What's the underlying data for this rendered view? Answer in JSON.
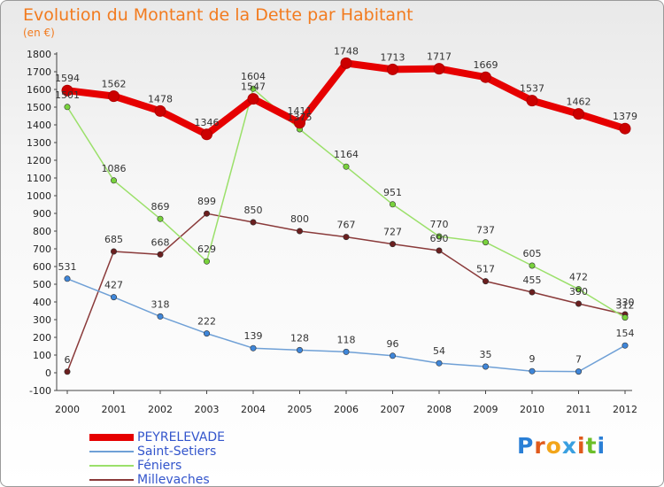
{
  "title": "Evolution du Montant de la Dette par Habitant",
  "subtitle": "(en €)",
  "logo": {
    "text": "Proxiti",
    "letters": [
      "P",
      "r",
      "o",
      "x",
      "i",
      "t",
      "i"
    ],
    "colors": [
      "#2a7fd6",
      "#e05a1c",
      "#f2a51a",
      "#3aa0e0",
      "#e05a1c",
      "#6cbf2a",
      "#2a7fd6"
    ]
  },
  "chart_data": {
    "type": "line",
    "x": [
      "2000",
      "2001",
      "2002",
      "2003",
      "2004",
      "2005",
      "2006",
      "2007",
      "2008",
      "2009",
      "2010",
      "2011",
      "2012"
    ],
    "ylim": [
      -100,
      1800
    ],
    "yticks": [
      -100,
      0,
      100,
      200,
      300,
      400,
      500,
      600,
      700,
      800,
      900,
      1000,
      1100,
      1200,
      1300,
      1400,
      1500,
      1600,
      1700,
      1800
    ],
    "grid": false,
    "legend_position": "bottom-left",
    "series": [
      {
        "name": "PEYRELEVADE",
        "color": "#e60000",
        "width": 8,
        "marker_color": "#cc0000",
        "values": [
          1594,
          1562,
          1478,
          1346,
          1547,
          1411,
          1748,
          1713,
          1717,
          1669,
          1537,
          1462,
          1379
        ],
        "labels": [
          "1594",
          "1562",
          "1478",
          "1346",
          "1547",
          "1411",
          "1748",
          "1713",
          "1717",
          "1669",
          "1537",
          "1462",
          "1379"
        ]
      },
      {
        "name": "Saint-Setiers",
        "color": "#6fa0d6",
        "width": 1.5,
        "marker_color": "#3f86d9",
        "values": [
          531,
          427,
          318,
          222,
          139,
          128,
          118,
          96,
          54,
          35,
          9,
          7,
          154
        ],
        "labels": [
          "531",
          "427",
          "318",
          "222",
          "139",
          "128",
          "118",
          "96",
          "54",
          "35",
          "9",
          "7",
          "154"
        ]
      },
      {
        "name": "Féniers",
        "color": "#9be06a",
        "width": 1.5,
        "marker_color": "#78d23c",
        "values": [
          1501,
          1086,
          869,
          629,
          1604,
          1375,
          1164,
          951,
          770,
          737,
          605,
          472,
          312
        ],
        "labels": [
          "1501",
          "1086",
          "869",
          "629",
          "1604",
          "1375",
          "1164",
          "951",
          "770",
          "737",
          "605",
          "472",
          "312"
        ]
      },
      {
        "name": "Millevaches",
        "color": "#8a3a3a",
        "width": 1.5,
        "marker_color": "#6b1f1f",
        "values": [
          6,
          685,
          668,
          899,
          850,
          800,
          767,
          727,
          690,
          517,
          455,
          390,
          330
        ],
        "labels": [
          "6",
          "685",
          "668",
          "899",
          "850",
          "800",
          "767",
          "727",
          "690",
          "517",
          "455",
          "390",
          "330"
        ]
      }
    ]
  }
}
